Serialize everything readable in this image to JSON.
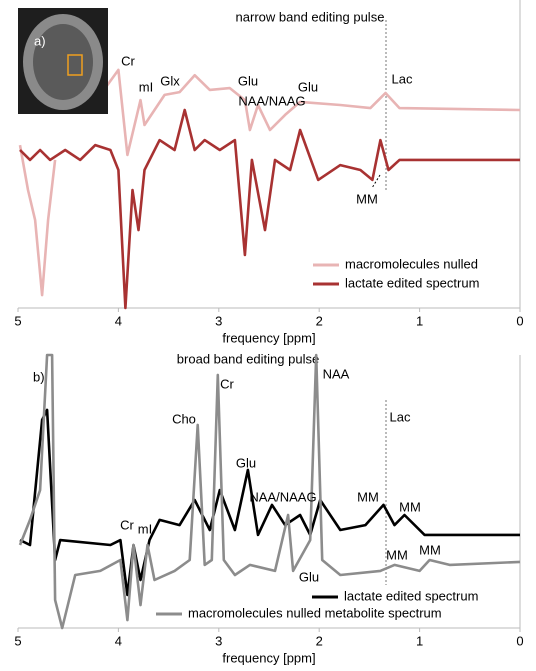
{
  "chart_data": [
    {
      "type": "line",
      "panel_label": "a)",
      "title": "narrow band editing pulse",
      "x_label": "frequency [ppm]",
      "xlim": [
        5,
        0
      ],
      "xticks": [
        5,
        4,
        3,
        2,
        1,
        0
      ],
      "ylim": [
        0,
        100
      ],
      "legend": "lower right",
      "annotations": [
        "Cr",
        "mI",
        "Glx",
        "Glu",
        "NAA/NAAG",
        "Glu",
        "Lac",
        "MM"
      ],
      "series": [
        {
          "name": "macromolecules nulled",
          "color": "#e8b4b4",
          "x": [
            4.98,
            4.9,
            4.83,
            4.76,
            4.7,
            4.63,
            4.4,
            4.18,
            4.0,
            3.91,
            3.78,
            3.74,
            3.54,
            3.39,
            3.24,
            3.09,
            2.89,
            2.74,
            2.69,
            2.61,
            2.49,
            2.34,
            2.19,
            1.79,
            1.49,
            1.34,
            1.2,
            0
          ],
          "values": [
            52.9,
            38.3,
            28.6,
            4.2,
            28.6,
            48.1,
            null,
            69.2,
            77.3,
            49.7,
            67.5,
            59.4,
            69.2,
            70.1,
            75.6,
            70.8,
            71.4,
            67.5,
            57.8,
            65.9,
            57.8,
            62.7,
            66.9,
            65.9,
            64.9,
            69.8,
            64.9,
            64.3
          ]
        },
        {
          "name": "lactate edited spectrum",
          "color": "#a83232",
          "x": [
            4.98,
            4.88,
            4.78,
            4.68,
            4.53,
            4.38,
            4.23,
            4.08,
            4.0,
            3.93,
            3.86,
            3.8,
            3.74,
            3.59,
            3.44,
            3.34,
            3.24,
            3.14,
            2.99,
            2.84,
            2.74,
            2.67,
            2.54,
            2.44,
            2.29,
            2.19,
            2.01,
            1.79,
            1.59,
            1.47,
            1.39,
            1.31,
            1.2,
            0
          ],
          "values": [
            51.3,
            48.1,
            51.3,
            48.1,
            51.3,
            48.1,
            52.9,
            51.3,
            44.8,
            0,
            38.3,
            25.3,
            44.8,
            54.5,
            51.3,
            64.3,
            51.3,
            54.5,
            51.3,
            54.5,
            17.2,
            48.1,
            25.3,
            48.1,
            44.8,
            57.8,
            41.6,
            46.4,
            44.8,
            41.6,
            54.5,
            44.8,
            48.1,
            48.1
          ]
        }
      ]
    },
    {
      "type": "line",
      "panel_label": "b)",
      "title": "broad band editing pulse",
      "x_label": "frequency [ppm]",
      "xlim": [
        5,
        0
      ],
      "xticks": [
        5,
        4,
        3,
        2,
        1,
        0
      ],
      "ylim": [
        0,
        100
      ],
      "legend": "lower right",
      "annotations": [
        "Cho",
        "Cr",
        "NAA",
        "Glu",
        "NAA/NAAG",
        "Lac",
        "Cr",
        "mI",
        "MM",
        "MM",
        "Glu",
        "MM",
        "MM"
      ],
      "series": [
        {
          "name": "lactate edited spectrum",
          "color": "#000000",
          "x": [
            4.98,
            4.88,
            4.76,
            4.71,
            4.63,
            4.58,
            4.08,
            3.98,
            3.91,
            3.85,
            3.78,
            3.69,
            3.59,
            3.39,
            3.24,
            3.09,
            2.99,
            2.84,
            2.71,
            2.61,
            2.47,
            2.34,
            2.19,
            2.09,
            1.99,
            1.79,
            1.54,
            1.36,
            1.25,
            1.15,
            0.95,
            0
          ],
          "values": [
            32.2,
            30.4,
            76.2,
            79.9,
            24.9,
            32.2,
            30.4,
            32.2,
            12.1,
            30.4,
            17.6,
            32.2,
            39.6,
            37.7,
            46.9,
            35.9,
            50.5,
            35.9,
            57.9,
            34.1,
            45.1,
            37.7,
            41.4,
            34.1,
            46.9,
            35.9,
            37.7,
            45.1,
            37.7,
            41.4,
            34.1,
            34.1
          ]
        },
        {
          "name": "macromolecules nulled metabolite spectrum",
          "color": "#8c8c8c",
          "x": [
            4.98,
            4.88,
            4.78,
            4.71,
            4.66,
            4.63,
            4.56,
            4.43,
            4.18,
            3.98,
            3.91,
            3.85,
            3.78,
            3.71,
            3.64,
            3.44,
            3.29,
            3.21,
            3.14,
            3.07,
            3.01,
            2.95,
            2.84,
            2.69,
            2.44,
            2.31,
            2.26,
            2.09,
            2.03,
            1.97,
            1.79,
            1.39,
            1.25,
            1.0,
            0.9,
            0.7,
            0
          ],
          "values": [
            30.4,
            39.6,
            50.5,
            100,
            100,
            10.3,
            0,
            19.4,
            20.9,
            24.9,
            2.9,
            30.4,
            8.4,
            30.4,
            17.6,
            20.9,
            24.9,
            74.4,
            23.1,
            24.9,
            92.7,
            24.9,
            19.4,
            23.1,
            20.9,
            41.4,
            20.9,
            32.2,
            100,
            24.9,
            19.4,
            20.9,
            23.1,
            20.9,
            24.9,
            23.1,
            24.2
          ]
        }
      ]
    }
  ]
}
